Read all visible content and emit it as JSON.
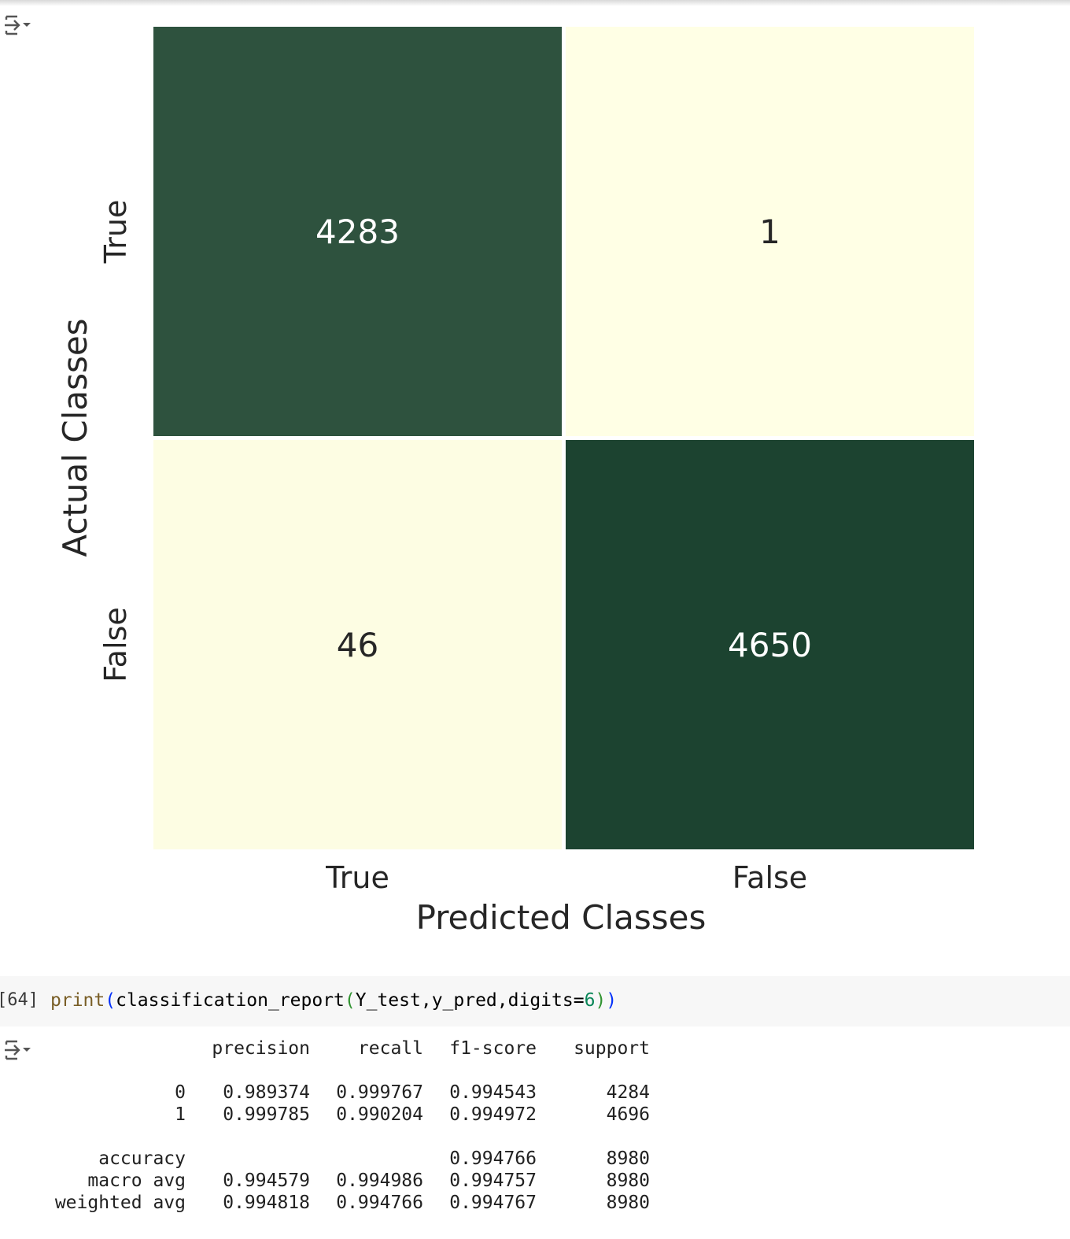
{
  "chart_data": {
    "type": "heatmap",
    "xlabel": "Predicted Classes",
    "ylabel": "Actual Classes",
    "x_tick_labels": [
      "True",
      "False"
    ],
    "y_tick_labels": [
      "True",
      "False"
    ],
    "matrix": [
      [
        4283,
        1
      ],
      [
        46,
        4650
      ]
    ],
    "cell_labels": [
      [
        "4283",
        "1"
      ],
      [
        "46",
        "4650"
      ]
    ],
    "colors": {
      "low": "#ffffe5",
      "high": "#1c4330",
      "annot_dark": "#ffffff",
      "annot_light": "#262626"
    },
    "colorbar": false
  },
  "code_cell": {
    "exec_count": "[64]",
    "fn_print": "print",
    "paren_open_1": "(",
    "fn_report": "classification_report",
    "paren_open_2": "(",
    "args": "Y_test,y_pred,digits=",
    "digits_value": "6",
    "paren_close_2": ")",
    "paren_close_1": ")"
  },
  "report": {
    "header": [
      "",
      "precision",
      "recall",
      "f1-score",
      "support"
    ],
    "rows": [
      [
        "0",
        "0.989374",
        "0.999767",
        "0.994543",
        "4284"
      ],
      [
        "1",
        "0.999785",
        "0.990204",
        "0.994972",
        "4696"
      ],
      [
        "",
        "",
        "",
        "",
        ""
      ],
      [
        "accuracy",
        "",
        "",
        "0.994766",
        "8980"
      ],
      [
        "macro avg",
        "0.994579",
        "0.994986",
        "0.994757",
        "8980"
      ],
      [
        "weighted avg",
        "0.994818",
        "0.994766",
        "0.994767",
        "8980"
      ]
    ]
  }
}
